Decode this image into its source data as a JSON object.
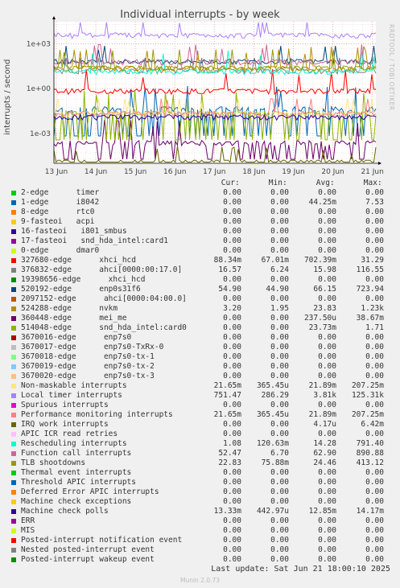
{
  "chart_data": {
    "type": "line",
    "title": "Individual interrupts - by week",
    "ylabel": "interrupts / second",
    "yscale": "log",
    "ylim": [
      1e-05,
      30000
    ],
    "yticks": [
      {
        "value": 1000,
        "label": "1e+03"
      },
      {
        "value": 1,
        "label": "1e+00"
      },
      {
        "value": 0.001,
        "label": "1e-03"
      }
    ],
    "xticks": [
      "13 Jun",
      "14 Jun",
      "15 Jun",
      "16 Jun",
      "17 Jun",
      "18 Jun",
      "19 Jun",
      "20 Jun",
      "21 Jun"
    ],
    "grid": true,
    "legend_position": "bottom",
    "columns": [
      "Cur:",
      "Min:",
      "Avg:",
      "Max:"
    ],
    "series": [
      {
        "name": "2-edge      timer",
        "color": "#00cc00",
        "cur": "0.00",
        "min": "0.00",
        "avg": "0.00",
        "max": "0.00"
      },
      {
        "name": "1-edge      i8042",
        "color": "#0066b3",
        "cur": "0.00",
        "min": "0.00",
        "avg": "44.25m",
        "max": "7.53"
      },
      {
        "name": "8-edge      rtc0",
        "color": "#ff8000",
        "cur": "0.00",
        "min": "0.00",
        "avg": "0.00",
        "max": "0.00"
      },
      {
        "name": "9-fasteoi   acpi",
        "color": "#ffcc00",
        "cur": "0.00",
        "min": "0.00",
        "avg": "0.00",
        "max": "0.00"
      },
      {
        "name": "16-fasteoi   i801_smbus",
        "color": "#330099",
        "cur": "0.00",
        "min": "0.00",
        "avg": "0.00",
        "max": "0.00"
      },
      {
        "name": "17-fasteoi   snd_hda_intel:card1",
        "color": "#990099",
        "cur": "0.00",
        "min": "0.00",
        "avg": "0.00",
        "max": "0.00"
      },
      {
        "name": "0-edge      dmar0",
        "color": "#ccff00",
        "cur": "0.00",
        "min": "0.00",
        "avg": "0.00",
        "max": "0.00"
      },
      {
        "name": "327680-edge      xhci_hcd",
        "color": "#ff0000",
        "cur": "88.34m",
        "min": "67.01m",
        "avg": "702.39m",
        "max": "31.29"
      },
      {
        "name": "376832-edge      ahci[0000:00:17.0]",
        "color": "#808080",
        "cur": "16.57",
        "min": "6.24",
        "avg": "15.98",
        "max": "116.55"
      },
      {
        "name": "19398656-edge      xhci_hcd",
        "color": "#008f00",
        "cur": "0.00",
        "min": "0.00",
        "avg": "0.00",
        "max": "0.00"
      },
      {
        "name": "520192-edge      enp0s31f6",
        "color": "#00487d",
        "cur": "54.90",
        "min": "44.90",
        "avg": "66.15",
        "max": "723.94"
      },
      {
        "name": "2097152-edge      ahci[0000:04:00.0]",
        "color": "#b35a00",
        "cur": "0.00",
        "min": "0.00",
        "avg": "0.00",
        "max": "0.00"
      },
      {
        "name": "524288-edge      nvkm",
        "color": "#b38f00",
        "cur": "3.20",
        "min": "1.95",
        "avg": "23.83",
        "max": "1.23k"
      },
      {
        "name": "360448-edge      mei_me",
        "color": "#6b006b",
        "cur": "0.00",
        "min": "0.00",
        "avg": "237.50u",
        "max": "38.67m"
      },
      {
        "name": "514048-edge      snd_hda_intel:card0",
        "color": "#8fb300",
        "cur": "0.00",
        "min": "0.00",
        "avg": "23.73m",
        "max": "1.71"
      },
      {
        "name": "3670016-edge      enp7s0",
        "color": "#b30000",
        "cur": "0.00",
        "min": "0.00",
        "avg": "0.00",
        "max": "0.00"
      },
      {
        "name": "3670017-edge      enp7s0-TxRx-0",
        "color": "#bebebe",
        "cur": "0.00",
        "min": "0.00",
        "avg": "0.00",
        "max": "0.00"
      },
      {
        "name": "3670018-edge      enp7s0-tx-1",
        "color": "#80ff80",
        "cur": "0.00",
        "min": "0.00",
        "avg": "0.00",
        "max": "0.00"
      },
      {
        "name": "3670019-edge      enp7s0-tx-2",
        "color": "#80c9ff",
        "cur": "0.00",
        "min": "0.00",
        "avg": "0.00",
        "max": "0.00"
      },
      {
        "name": "3670020-edge      enp7s0-tx-3",
        "color": "#ffc080",
        "cur": "0.00",
        "min": "0.00",
        "avg": "0.00",
        "max": "0.00"
      },
      {
        "name": "Non-maskable interrupts",
        "color": "#ffe680",
        "cur": "21.65m",
        "min": "365.45u",
        "avg": "21.89m",
        "max": "207.25m"
      },
      {
        "name": "Local timer interrupts",
        "color": "#aa80ff",
        "cur": "751.47",
        "min": "286.29",
        "avg": "3.81k",
        "max": "125.31k"
      },
      {
        "name": "Spurious interrupts",
        "color": "#ee00cc",
        "cur": "0.00",
        "min": "0.00",
        "avg": "0.00",
        "max": "0.00"
      },
      {
        "name": "Performance monitoring interrupts",
        "color": "#ff8080",
        "cur": "21.65m",
        "min": "365.45u",
        "avg": "21.89m",
        "max": "207.25m"
      },
      {
        "name": "IRQ work interrupts",
        "color": "#666600",
        "cur": "0.00",
        "min": "0.00",
        "avg": "4.17u",
        "max": "6.42m"
      },
      {
        "name": "APIC ICR read retries",
        "color": "#ffbfff",
        "cur": "0.00",
        "min": "0.00",
        "avg": "0.00",
        "max": "0.00"
      },
      {
        "name": "Rescheduling interrupts",
        "color": "#00ffcc",
        "cur": "1.08",
        "min": "120.63m",
        "avg": "14.28",
        "max": "791.40"
      },
      {
        "name": "Function call interrupts",
        "color": "#cc6699",
        "cur": "52.47",
        "min": "6.70",
        "avg": "62.90",
        "max": "890.88"
      },
      {
        "name": "TLB shootdowns",
        "color": "#999900",
        "cur": "22.83",
        "min": "75.88m",
        "avg": "24.46",
        "max": "413.12"
      },
      {
        "name": "Thermal event interrupts",
        "color": "#00cc00",
        "cur": "0.00",
        "min": "0.00",
        "avg": "0.00",
        "max": "0.00"
      },
      {
        "name": "Threshold APIC interrupts",
        "color": "#0066b3",
        "cur": "0.00",
        "min": "0.00",
        "avg": "0.00",
        "max": "0.00"
      },
      {
        "name": "Deferred Error APIC interrupts",
        "color": "#ff8000",
        "cur": "0.00",
        "min": "0.00",
        "avg": "0.00",
        "max": "0.00"
      },
      {
        "name": "Machine check exceptions",
        "color": "#ffcc00",
        "cur": "0.00",
        "min": "0.00",
        "avg": "0.00",
        "max": "0.00"
      },
      {
        "name": "Machine check polls",
        "color": "#330099",
        "cur": "13.33m",
        "min": "442.97u",
        "avg": "12.85m",
        "max": "14.17m"
      },
      {
        "name": "ERR",
        "color": "#990099",
        "cur": "0.00",
        "min": "0.00",
        "avg": "0.00",
        "max": "0.00"
      },
      {
        "name": "MIS",
        "color": "#ccff00",
        "cur": "0.00",
        "min": "0.00",
        "avg": "0.00",
        "max": "0.00"
      },
      {
        "name": "Posted-interrupt notification event",
        "color": "#ff0000",
        "cur": "0.00",
        "min": "0.00",
        "avg": "0.00",
        "max": "0.00"
      },
      {
        "name": "Nested posted-interrupt event",
        "color": "#808080",
        "cur": "0.00",
        "min": "0.00",
        "avg": "0.00",
        "max": "0.00"
      },
      {
        "name": "Posted-interrupt wakeup event",
        "color": "#008f00",
        "cur": "0.00",
        "min": "0.00",
        "avg": "0.00",
        "max": "0.00"
      }
    ]
  },
  "side_label": "RRDTOOL / TOBI OETIKER",
  "footer": "Last update: Sat Jun 21 18:00:10 2025",
  "munin_version": "Munin 2.0.73"
}
